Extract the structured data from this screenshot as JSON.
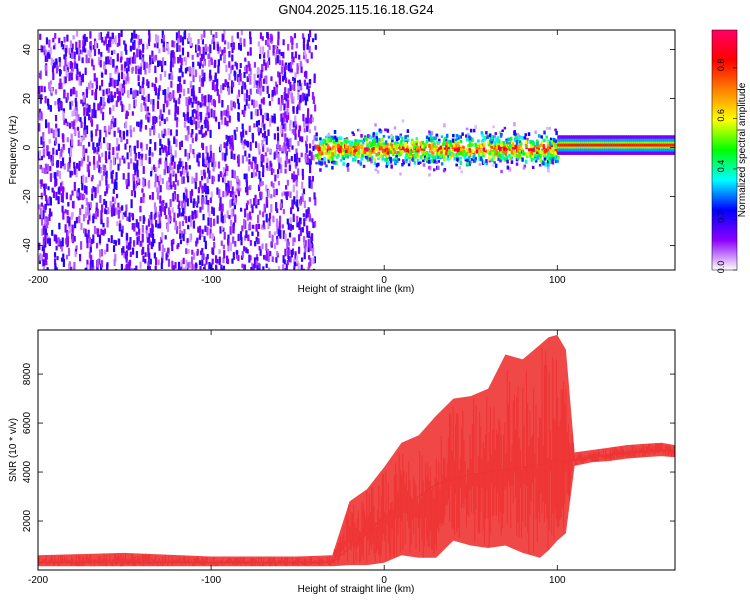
{
  "title": "GN04.2025.115.16.18.G24",
  "chart_data": [
    {
      "type": "heatmap",
      "xlabel": "Height of straight line (km)",
      "ylabel": "Frequency (Hz)",
      "xlim": [
        -200,
        168
      ],
      "ylim": [
        -50,
        48
      ],
      "x_ticks": [
        -200,
        -100,
        0,
        100
      ],
      "y_ticks": [
        -40,
        -20,
        0,
        20,
        40
      ],
      "colorbar": {
        "label": "Normalized spectral amplitude",
        "range": [
          0,
          0.95
        ],
        "ticks": [
          0.0,
          0.2,
          0.4,
          0.6,
          0.8
        ],
        "tick_labels": [
          "0.0",
          "0.2",
          "0.4",
          "0.6",
          "0.8"
        ],
        "colormap": [
          "#ffffff",
          "#8b00ff",
          "#0000ff",
          "#00ffff",
          "#00ff00",
          "#ffff00",
          "#ff8000",
          "#ff0000",
          "#ff0066"
        ]
      },
      "regions": [
        {
          "x": [
            -200,
            -40
          ],
          "frequency_band": [
            -50,
            48
          ],
          "pattern": "broadband noise",
          "amplitude": 0.08
        },
        {
          "x": [
            -40,
            100
          ],
          "frequency_center": 0,
          "frequency_width": 10,
          "pattern": "narrow band near 0 Hz",
          "amplitude_peak": 0.9
        },
        {
          "x": [
            100,
            168
          ],
          "frequency_center": 1,
          "frequency_width": 4,
          "pattern": "steady narrow band",
          "amplitude_peak": 0.9
        }
      ],
      "grid": false
    },
    {
      "type": "line",
      "xlabel": "Height of straight line (km)",
      "ylabel": "SNR (10 * v/v)",
      "xlim": [
        -200,
        168
      ],
      "ylim": [
        0,
        9800
      ],
      "x_ticks": [
        -200,
        -100,
        0,
        100
      ],
      "y_ticks": [
        2000,
        4000,
        6000,
        8000
      ],
      "color": "#ee3333",
      "series": [
        {
          "x": [
            -200,
            -150,
            -100,
            -50,
            -30,
            -20,
            -10,
            0,
            10,
            20,
            30,
            40,
            50,
            60,
            70,
            80,
            90,
            95,
            100,
            105,
            110,
            120,
            130,
            140,
            150,
            160,
            168
          ],
          "y_mid": [
            300,
            300,
            300,
            300,
            300,
            900,
            1500,
            2200,
            2600,
            3000,
            3500,
            3700,
            3900,
            4000,
            4100,
            4200,
            4300,
            4400,
            4500,
            4400,
            4500,
            4600,
            4700,
            4800,
            4850,
            4900,
            4850
          ],
          "y_max": [
            600,
            700,
            550,
            550,
            600,
            2800,
            3300,
            4200,
            5200,
            5500,
            6300,
            7000,
            7100,
            7400,
            8800,
            8600,
            9200,
            9500,
            9600,
            9000,
            4800,
            4900,
            5000,
            5100,
            5150,
            5200,
            5100
          ],
          "y_min": [
            150,
            150,
            150,
            150,
            150,
            200,
            200,
            300,
            600,
            500,
            500,
            1200,
            1000,
            900,
            1000,
            700,
            500,
            800,
            1200,
            1500,
            4250,
            4400,
            4450,
            4550,
            4600,
            4650,
            4600
          ]
        }
      ],
      "grid": false
    }
  ]
}
